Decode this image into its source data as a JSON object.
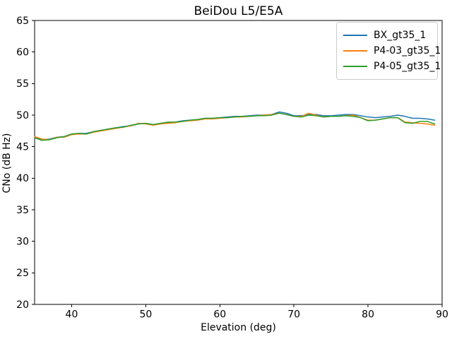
{
  "figure": {
    "background": "#ffffff"
  },
  "chart_data": {
    "type": "line",
    "title": "BeiDou L5/E5A",
    "xlabel": "Elevation (deg)",
    "ylabel": "CNo (dB Hz)",
    "xlim": [
      35,
      90
    ],
    "ylim": [
      20,
      65
    ],
    "x_ticks": [
      40,
      50,
      60,
      70,
      80,
      90
    ],
    "y_ticks": [
      20,
      25,
      30,
      35,
      40,
      45,
      50,
      55,
      60,
      65
    ],
    "grid": false,
    "legend_position": "upper right",
    "x": [
      35,
      36,
      37,
      38,
      39,
      40,
      41,
      42,
      43,
      44,
      45,
      46,
      47,
      48,
      49,
      50,
      51,
      52,
      53,
      54,
      55,
      56,
      57,
      58,
      59,
      60,
      61,
      62,
      63,
      64,
      65,
      66,
      67,
      68,
      69,
      70,
      71,
      72,
      73,
      74,
      75,
      76,
      77,
      78,
      79,
      80,
      81,
      82,
      83,
      84,
      85,
      86,
      87,
      88,
      89
    ],
    "series": [
      {
        "name": "BX_gt35_1",
        "color": "#1f77b4",
        "values": [
          46.5,
          46.1,
          46.2,
          46.5,
          46.6,
          47.0,
          47.1,
          47.1,
          47.4,
          47.6,
          47.8,
          48.0,
          48.2,
          48.3,
          48.6,
          48.7,
          48.5,
          48.7,
          48.8,
          48.9,
          49.1,
          49.2,
          49.3,
          49.5,
          49.5,
          49.6,
          49.7,
          49.8,
          49.8,
          49.9,
          50.0,
          50.0,
          50.1,
          50.5,
          50.3,
          49.9,
          49.9,
          50.1,
          50.1,
          49.9,
          49.9,
          50.0,
          50.1,
          50.1,
          49.9,
          49.7,
          49.6,
          49.7,
          49.8,
          50.0,
          49.8,
          49.5,
          49.5,
          49.4,
          49.2
        ]
      },
      {
        "name": "P4-03_gt35_1",
        "color": "#ff7f0e",
        "values": [
          46.6,
          46.2,
          46.1,
          46.5,
          46.5,
          46.9,
          47.0,
          47.0,
          47.3,
          47.5,
          47.7,
          47.9,
          48.1,
          48.3,
          48.7,
          48.6,
          48.4,
          48.6,
          48.7,
          48.8,
          49.0,
          49.1,
          49.2,
          49.4,
          49.4,
          49.5,
          49.6,
          49.7,
          49.7,
          49.8,
          49.9,
          50.0,
          50.1,
          50.3,
          50.1,
          49.8,
          49.8,
          50.3,
          50.0,
          49.7,
          49.8,
          49.8,
          49.9,
          50.0,
          49.6,
          49.2,
          49.2,
          49.4,
          49.6,
          49.6,
          48.9,
          48.8,
          48.7,
          48.6,
          48.4
        ]
      },
      {
        "name": "P4-05_gt35_1",
        "color": "#2ca02c",
        "values": [
          46.4,
          46.0,
          46.1,
          46.4,
          46.6,
          47.0,
          47.1,
          47.0,
          47.4,
          47.6,
          47.8,
          48.0,
          48.1,
          48.4,
          48.6,
          48.7,
          48.5,
          48.7,
          48.9,
          48.9,
          49.0,
          49.2,
          49.3,
          49.5,
          49.5,
          49.6,
          49.6,
          49.7,
          49.8,
          49.8,
          49.9,
          49.9,
          50.0,
          50.3,
          50.1,
          49.8,
          49.7,
          50.0,
          49.9,
          49.7,
          49.8,
          49.8,
          49.9,
          49.8,
          49.6,
          49.1,
          49.2,
          49.4,
          49.6,
          49.6,
          48.8,
          48.7,
          49.0,
          49.0,
          48.6
        ]
      }
    ]
  }
}
